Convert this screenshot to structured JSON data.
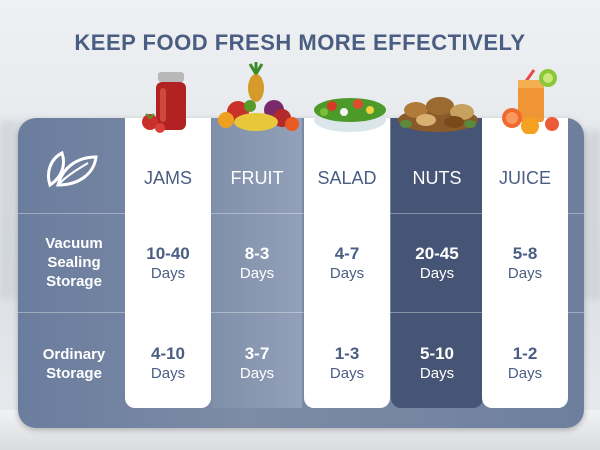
{
  "title": "KEEP FOOD FRESH MORE EFFECTIVELY",
  "row_labels": {
    "vacuum": "Vacuum\nSealing\nStorage",
    "ordinary": "Ordinary\nStorage"
  },
  "columns": [
    {
      "name": "JAMS",
      "icon": "jam-jar-icon",
      "vacuum": "10-40",
      "ordinary": "4-10",
      "unit": "Days"
    },
    {
      "name": "FRUIT",
      "icon": "fruit-basket-icon",
      "vacuum": "8-3",
      "ordinary": "3-7",
      "unit": "Days"
    },
    {
      "name": "SALAD",
      "icon": "salad-bowl-icon",
      "vacuum": "4-7",
      "ordinary": "1-3",
      "unit": "Days"
    },
    {
      "name": "NUTS",
      "icon": "nuts-pile-icon",
      "vacuum": "20-45",
      "ordinary": "5-10",
      "unit": "Days"
    },
    {
      "name": "JUICE",
      "icon": "juice-glass-icon",
      "vacuum": "5-8",
      "ordinary": "1-2",
      "unit": "Days"
    }
  ],
  "colors": {
    "title": "#4a5e83",
    "panel": "#6e7f9e",
    "card": "#ffffff",
    "dark_column": "#465575"
  },
  "logo_icon": "leaf-logo-icon"
}
